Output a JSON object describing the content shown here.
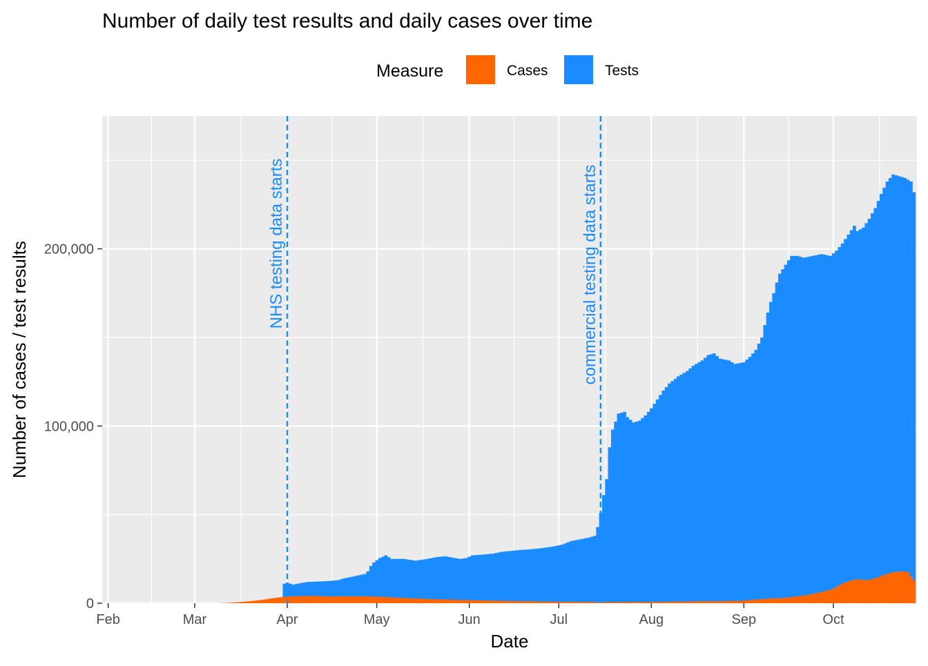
{
  "chart_data": {
    "type": "area",
    "title": "Number of daily test results and daily cases over time",
    "xlabel": "Date",
    "ylabel": "Number of cases / test results",
    "x_range": [
      "2020-01-30",
      "2020-10-29"
    ],
    "ylim": [
      0,
      275000
    ],
    "x_ticks": [
      {
        "date": "2020-02-01",
        "label": "Feb"
      },
      {
        "date": "2020-03-01",
        "label": "Mar"
      },
      {
        "date": "2020-04-01",
        "label": "Apr"
      },
      {
        "date": "2020-05-01",
        "label": "May"
      },
      {
        "date": "2020-06-01",
        "label": "Jun"
      },
      {
        "date": "2020-07-01",
        "label": "Jul"
      },
      {
        "date": "2020-08-01",
        "label": "Aug"
      },
      {
        "date": "2020-09-01",
        "label": "Sep"
      },
      {
        "date": "2020-10-01",
        "label": "Oct"
      }
    ],
    "y_ticks": [
      {
        "value": 0,
        "label": "0"
      },
      {
        "value": 100000,
        "label": "100,000"
      },
      {
        "value": 200000,
        "label": "200,000"
      }
    ],
    "grid": true,
    "legend": {
      "title": "Measure",
      "position": "top"
    },
    "series": [
      {
        "name": "Tests",
        "color": "#1a8cff",
        "points": [
          [
            "2020-03-31",
            11000
          ],
          [
            "2020-04-01",
            11500
          ],
          [
            "2020-04-03",
            10500
          ],
          [
            "2020-04-06",
            11500
          ],
          [
            "2020-04-08",
            12000
          ],
          [
            "2020-04-15",
            12500
          ],
          [
            "2020-04-18",
            13000
          ],
          [
            "2020-04-20",
            14000
          ],
          [
            "2020-04-23",
            15000
          ],
          [
            "2020-04-27",
            16500
          ],
          [
            "2020-04-28",
            18000
          ],
          [
            "2020-04-29",
            21000
          ],
          [
            "2020-04-30",
            23000
          ],
          [
            "2020-05-02",
            25500
          ],
          [
            "2020-05-04",
            27000
          ],
          [
            "2020-05-06",
            25000
          ],
          [
            "2020-05-10",
            25000
          ],
          [
            "2020-05-14",
            24000
          ],
          [
            "2020-05-18",
            25000
          ],
          [
            "2020-05-21",
            26000
          ],
          [
            "2020-05-24",
            26500
          ],
          [
            "2020-05-27",
            25500
          ],
          [
            "2020-05-29",
            25000
          ],
          [
            "2020-05-31",
            25500
          ],
          [
            "2020-06-02",
            27000
          ],
          [
            "2020-06-06",
            27500
          ],
          [
            "2020-06-09",
            28000
          ],
          [
            "2020-06-12",
            29000
          ],
          [
            "2020-06-15",
            29500
          ],
          [
            "2020-06-18",
            30000
          ],
          [
            "2020-06-22",
            30500
          ],
          [
            "2020-06-25",
            31000
          ],
          [
            "2020-06-29",
            32000
          ],
          [
            "2020-07-02",
            33000
          ],
          [
            "2020-07-05",
            35000
          ],
          [
            "2020-07-08",
            36000
          ],
          [
            "2020-07-11",
            37000
          ],
          [
            "2020-07-13",
            38000
          ],
          [
            "2020-07-14",
            43000
          ],
          [
            "2020-07-15",
            51000
          ],
          [
            "2020-07-16",
            61000
          ],
          [
            "2020-07-17",
            70000
          ],
          [
            "2020-07-18",
            88000
          ],
          [
            "2020-07-19",
            98000
          ],
          [
            "2020-07-21",
            107000
          ],
          [
            "2020-07-23",
            108000
          ],
          [
            "2020-07-24",
            105000
          ],
          [
            "2020-07-26",
            102000
          ],
          [
            "2020-07-28",
            103000
          ],
          [
            "2020-07-30",
            106000
          ],
          [
            "2020-08-01",
            110000
          ],
          [
            "2020-08-03",
            115000
          ],
          [
            "2020-08-05",
            120000
          ],
          [
            "2020-08-07",
            124000
          ],
          [
            "2020-08-10",
            128000
          ],
          [
            "2020-08-13",
            131000
          ],
          [
            "2020-08-15",
            134000
          ],
          [
            "2020-08-18",
            137000
          ],
          [
            "2020-08-20",
            140000
          ],
          [
            "2020-08-22",
            141000
          ],
          [
            "2020-08-24",
            138000
          ],
          [
            "2020-08-27",
            137000
          ],
          [
            "2020-08-29",
            135000
          ],
          [
            "2020-09-01",
            136000
          ],
          [
            "2020-09-03",
            139000
          ],
          [
            "2020-09-05",
            143000
          ],
          [
            "2020-09-07",
            150000
          ],
          [
            "2020-09-08",
            157000
          ],
          [
            "2020-09-09",
            164000
          ],
          [
            "2020-09-10",
            170000
          ],
          [
            "2020-09-11",
            175000
          ],
          [
            "2020-09-12",
            181000
          ],
          [
            "2020-09-13",
            186000
          ],
          [
            "2020-09-15",
            191000
          ],
          [
            "2020-09-17",
            196000
          ],
          [
            "2020-09-19",
            196000
          ],
          [
            "2020-09-21",
            195000
          ],
          [
            "2020-09-24",
            196000
          ],
          [
            "2020-09-27",
            197000
          ],
          [
            "2020-09-30",
            196000
          ],
          [
            "2020-10-02",
            199000
          ],
          [
            "2020-10-04",
            203000
          ],
          [
            "2020-10-06",
            208000
          ],
          [
            "2020-10-08",
            213000
          ],
          [
            "2020-10-09",
            210000
          ],
          [
            "2020-10-11",
            212000
          ],
          [
            "2020-10-13",
            217000
          ],
          [
            "2020-10-15",
            223000
          ],
          [
            "2020-10-17",
            231000
          ],
          [
            "2020-10-19",
            238000
          ],
          [
            "2020-10-21",
            242000
          ],
          [
            "2020-10-23",
            241000
          ],
          [
            "2020-10-25",
            240000
          ],
          [
            "2020-10-27",
            238000
          ],
          [
            "2020-10-28",
            232000
          ]
        ]
      },
      {
        "name": "Cases",
        "color": "#ff6600",
        "points": [
          [
            "2020-02-01",
            0
          ],
          [
            "2020-03-08",
            0
          ],
          [
            "2020-03-12",
            200
          ],
          [
            "2020-03-16",
            600
          ],
          [
            "2020-03-20",
            1200
          ],
          [
            "2020-03-24",
            2000
          ],
          [
            "2020-03-28",
            3000
          ],
          [
            "2020-04-01",
            3800
          ],
          [
            "2020-04-05",
            4000
          ],
          [
            "2020-04-10",
            4100
          ],
          [
            "2020-04-15",
            3800
          ],
          [
            "2020-04-20",
            3900
          ],
          [
            "2020-04-25",
            3900
          ],
          [
            "2020-05-01",
            3700
          ],
          [
            "2020-05-06",
            3300
          ],
          [
            "2020-05-12",
            2800
          ],
          [
            "2020-05-20",
            2300
          ],
          [
            "2020-06-01",
            1700
          ],
          [
            "2020-06-15",
            1200
          ],
          [
            "2020-07-01",
            800
          ],
          [
            "2020-07-15",
            600
          ],
          [
            "2020-08-01",
            700
          ],
          [
            "2020-08-15",
            1000
          ],
          [
            "2020-08-31",
            1300
          ],
          [
            "2020-09-05",
            2000
          ],
          [
            "2020-09-10",
            2700
          ],
          [
            "2020-09-14",
            2900
          ],
          [
            "2020-09-18",
            3700
          ],
          [
            "2020-09-22",
            4500
          ],
          [
            "2020-09-26",
            6000
          ],
          [
            "2020-09-30",
            7500
          ],
          [
            "2020-10-03",
            10000
          ],
          [
            "2020-10-06",
            12500
          ],
          [
            "2020-10-09",
            13500
          ],
          [
            "2020-10-12",
            13000
          ],
          [
            "2020-10-15",
            14000
          ],
          [
            "2020-10-18",
            16000
          ],
          [
            "2020-10-21",
            17500
          ],
          [
            "2020-10-24",
            18000
          ],
          [
            "2020-10-26",
            17500
          ],
          [
            "2020-10-27",
            15000
          ],
          [
            "2020-10-28",
            13000
          ]
        ]
      }
    ],
    "annotations": [
      {
        "date": "2020-04-01",
        "label": "NHS testing data starts",
        "color": "#1a8cff"
      },
      {
        "date": "2020-07-15",
        "label": "commercial testing data starts",
        "color": "#1a8cff"
      }
    ]
  }
}
